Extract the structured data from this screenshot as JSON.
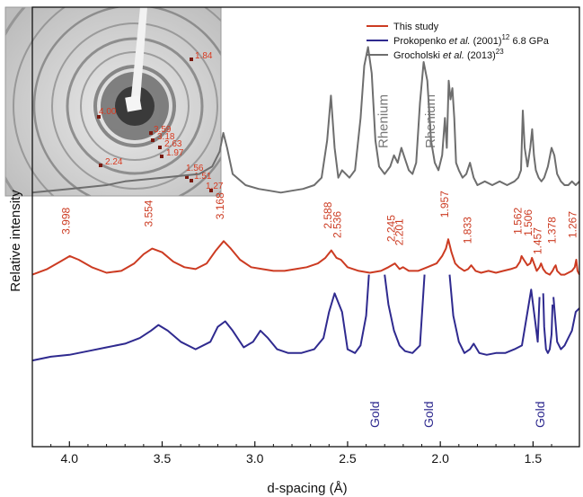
{
  "chart_data": {
    "type": "line",
    "xlabel": "d-spacing (Å)",
    "ylabel": "Relative intensity",
    "xlim": [
      4.2,
      1.25
    ],
    "x_reversed": true,
    "x_ticks": [
      4.0,
      3.5,
      3.0,
      2.5,
      2.0,
      1.5
    ],
    "x_tick_labels": [
      "4.0",
      "3.5",
      "3.0",
      "2.5",
      "2.0",
      "1.5"
    ],
    "ylim": [
      0,
      1
    ],
    "grid": false,
    "legend_position": "top-right",
    "series": [
      {
        "name": "This study",
        "color": "#cc3b22",
        "x": [
          4.2,
          4.12,
          4.05,
          3.998,
          3.95,
          3.88,
          3.8,
          3.72,
          3.65,
          3.6,
          3.554,
          3.5,
          3.44,
          3.38,
          3.32,
          3.26,
          3.21,
          3.168,
          3.13,
          3.08,
          3.02,
          2.96,
          2.9,
          2.84,
          2.78,
          2.72,
          2.66,
          2.62,
          2.588,
          2.56,
          2.536,
          2.5,
          2.44,
          2.38,
          2.32,
          2.28,
          2.245,
          2.22,
          2.201,
          2.17,
          2.12,
          2.07,
          2.02,
          1.99,
          1.97,
          1.957,
          1.94,
          1.92,
          1.9,
          1.87,
          1.85,
          1.833,
          1.81,
          1.78,
          1.74,
          1.7,
          1.66,
          1.62,
          1.59,
          1.57,
          1.562,
          1.55,
          1.53,
          1.515,
          1.506,
          1.495,
          1.48,
          1.465,
          1.457,
          1.445,
          1.43,
          1.41,
          1.395,
          1.385,
          1.378,
          1.37,
          1.35,
          1.33,
          1.31,
          1.29,
          1.275,
          1.267,
          1.26,
          1.25
        ],
        "y": [
          0.36,
          0.375,
          0.395,
          0.41,
          0.4,
          0.38,
          0.365,
          0.37,
          0.39,
          0.415,
          0.43,
          0.42,
          0.395,
          0.38,
          0.375,
          0.39,
          0.425,
          0.45,
          0.43,
          0.4,
          0.38,
          0.375,
          0.37,
          0.37,
          0.375,
          0.38,
          0.39,
          0.405,
          0.425,
          0.405,
          0.4,
          0.38,
          0.37,
          0.365,
          0.37,
          0.38,
          0.39,
          0.375,
          0.38,
          0.37,
          0.37,
          0.38,
          0.39,
          0.41,
          0.43,
          0.455,
          0.42,
          0.39,
          0.38,
          0.37,
          0.375,
          0.385,
          0.37,
          0.365,
          0.37,
          0.365,
          0.37,
          0.375,
          0.38,
          0.395,
          0.41,
          0.4,
          0.385,
          0.39,
          0.405,
          0.39,
          0.37,
          0.38,
          0.39,
          0.375,
          0.365,
          0.36,
          0.37,
          0.38,
          0.385,
          0.37,
          0.36,
          0.36,
          0.365,
          0.37,
          0.38,
          0.4,
          0.37,
          0.36
        ],
        "peak_labels": [
          {
            "d": 3.998,
            "label": "3.998"
          },
          {
            "d": 3.554,
            "label": "3.554"
          },
          {
            "d": 3.168,
            "label": "3.168"
          },
          {
            "d": 2.588,
            "label": "2.588"
          },
          {
            "d": 2.536,
            "label": "2.536"
          },
          {
            "d": 2.245,
            "label": "2.245"
          },
          {
            "d": 2.201,
            "label": "2.201"
          },
          {
            "d": 1.957,
            "label": "1.957"
          },
          {
            "d": 1.833,
            "label": "1.833"
          },
          {
            "d": 1.562,
            "label": "1.562"
          },
          {
            "d": 1.506,
            "label": "1.506"
          },
          {
            "d": 1.457,
            "label": "1.457"
          },
          {
            "d": 1.378,
            "label": "1.378"
          },
          {
            "d": 1.267,
            "label": "1.267"
          }
        ]
      },
      {
        "name": "Prokopenko et al. (2001)12 6.8 GPa",
        "color": "#2f2a8f",
        "x": [
          4.2,
          4.1,
          4.0,
          3.9,
          3.8,
          3.7,
          3.62,
          3.56,
          3.52,
          3.47,
          3.4,
          3.32,
          3.24,
          3.2,
          3.16,
          3.12,
          3.06,
          3.01,
          2.97,
          2.93,
          2.88,
          2.82,
          2.75,
          2.68,
          2.63,
          2.6,
          2.57,
          2.53,
          2.5,
          2.46,
          2.43,
          2.4,
          2.385
        ],
        "y": [
          0.13,
          0.14,
          0.145,
          0.155,
          0.165,
          0.175,
          0.19,
          0.21,
          0.225,
          0.21,
          0.18,
          0.16,
          0.18,
          0.22,
          0.235,
          0.21,
          0.165,
          0.18,
          0.21,
          0.19,
          0.16,
          0.15,
          0.15,
          0.16,
          0.19,
          0.26,
          0.31,
          0.26,
          0.16,
          0.15,
          0.17,
          0.25,
          0.36
        ],
        "segments_note": "",
        "x2": [
          2.3,
          2.28,
          2.25,
          2.22,
          2.19,
          2.15,
          2.11,
          2.085
        ],
        "y2": [
          0.36,
          0.28,
          0.21,
          0.17,
          0.155,
          0.15,
          0.17,
          0.36
        ],
        "x3": [
          1.95,
          1.93,
          1.9,
          1.87,
          1.84,
          1.82,
          1.79,
          1.75,
          1.7,
          1.65,
          1.6,
          1.56,
          1.53,
          1.51,
          1.49,
          1.475,
          1.465
        ],
        "y3": [
          0.36,
          0.25,
          0.18,
          0.15,
          0.16,
          0.175,
          0.15,
          0.145,
          0.15,
          0.15,
          0.16,
          0.17,
          0.26,
          0.32,
          0.24,
          0.18,
          0.3
        ],
        "x4": [
          1.445,
          1.44,
          1.43,
          1.42,
          1.41,
          1.4,
          1.395
        ],
        "y4": [
          0.31,
          0.22,
          0.16,
          0.15,
          0.16,
          0.2,
          0.28
        ],
        "x5": [
          1.39,
          1.37,
          1.35,
          1.33,
          1.31,
          1.29,
          1.27,
          1.25
        ],
        "y5": [
          0.3,
          0.18,
          0.16,
          0.17,
          0.19,
          0.21,
          0.26,
          0.27
        ],
        "annotations": [
          {
            "d": 2.33,
            "label": "Gold"
          },
          {
            "d": 2.04,
            "label": "Gold"
          },
          {
            "d": 1.44,
            "label": "Gold"
          }
        ]
      },
      {
        "name": "Grocholski et al. (2013)23",
        "color": "#6e6e6e",
        "x": [
          4.2,
          4.1,
          4.0,
          3.9,
          3.8,
          3.7,
          3.6,
          3.5,
          3.4,
          3.3,
          3.23,
          3.19,
          3.17,
          3.15,
          3.12,
          3.05,
          2.98,
          2.92,
          2.86,
          2.8,
          2.74,
          2.68,
          2.64,
          2.61,
          2.59,
          2.57,
          2.55,
          2.53,
          2.51,
          2.49,
          2.46,
          2.43,
          2.41,
          2.39,
          2.37,
          2.35,
          2.33,
          2.3,
          2.27,
          2.25,
          2.23,
          2.21,
          2.19,
          2.17,
          2.15,
          2.13,
          2.11,
          2.09,
          2.07,
          2.05,
          2.03,
          2.01,
          1.99,
          1.975,
          1.965,
          1.955,
          1.945,
          1.935,
          1.925,
          1.915,
          1.9,
          1.88,
          1.86,
          1.84,
          1.82,
          1.8,
          1.76,
          1.72,
          1.68,
          1.64,
          1.6,
          1.58,
          1.565,
          1.555,
          1.545,
          1.53,
          1.515,
          1.505,
          1.495,
          1.485,
          1.47,
          1.455,
          1.44,
          1.42,
          1.4,
          1.385,
          1.37,
          1.35,
          1.33,
          1.31,
          1.29,
          1.27,
          1.25
        ],
        "y": [
          0.58,
          0.585,
          0.59,
          0.595,
          0.6,
          0.61,
          0.615,
          0.62,
          0.625,
          0.63,
          0.65,
          0.69,
          0.74,
          0.7,
          0.63,
          0.6,
          0.59,
          0.585,
          0.58,
          0.585,
          0.59,
          0.6,
          0.62,
          0.72,
          0.84,
          0.7,
          0.62,
          0.64,
          0.63,
          0.62,
          0.64,
          0.78,
          0.92,
          0.97,
          0.9,
          0.72,
          0.65,
          0.63,
          0.65,
          0.68,
          0.66,
          0.7,
          0.67,
          0.64,
          0.63,
          0.66,
          0.82,
          0.93,
          0.88,
          0.72,
          0.66,
          0.64,
          0.68,
          0.78,
          0.7,
          0.88,
          0.83,
          0.86,
          0.78,
          0.66,
          0.64,
          0.62,
          0.63,
          0.66,
          0.62,
          0.6,
          0.61,
          0.6,
          0.61,
          0.6,
          0.61,
          0.62,
          0.64,
          0.8,
          0.7,
          0.65,
          0.7,
          0.75,
          0.68,
          0.64,
          0.62,
          0.61,
          0.62,
          0.65,
          0.7,
          0.68,
          0.63,
          0.61,
          0.6,
          0.6,
          0.61,
          0.6,
          0.61
        ],
        "annotations": [
          {
            "d": 2.285,
            "label": "Rhenium"
          },
          {
            "d": 2.03,
            "label": "Rhenium"
          }
        ]
      }
    ],
    "inset": {
      "ring_labels": [
        "1.84",
        "4.00",
        "3.59",
        "3.18",
        "2.63",
        "2.24",
        "1.97",
        "1.56",
        "1.51",
        "1.27"
      ]
    }
  },
  "legend": {
    "items": [
      {
        "pre": "This study",
        "ital": "",
        "post": "",
        "sup": "",
        "tail": "",
        "color": "#cc3b22"
      },
      {
        "pre": "Prokopenko ",
        "ital": "et al.",
        "post": " (2001)",
        "sup": "12",
        "tail": " 6.8 GPa",
        "color": "#2f2a8f"
      },
      {
        "pre": "Grocholski ",
        "ital": "et al.",
        "post": " (2013)",
        "sup": "23",
        "tail": "",
        "color": "#6e6e6e"
      }
    ]
  }
}
